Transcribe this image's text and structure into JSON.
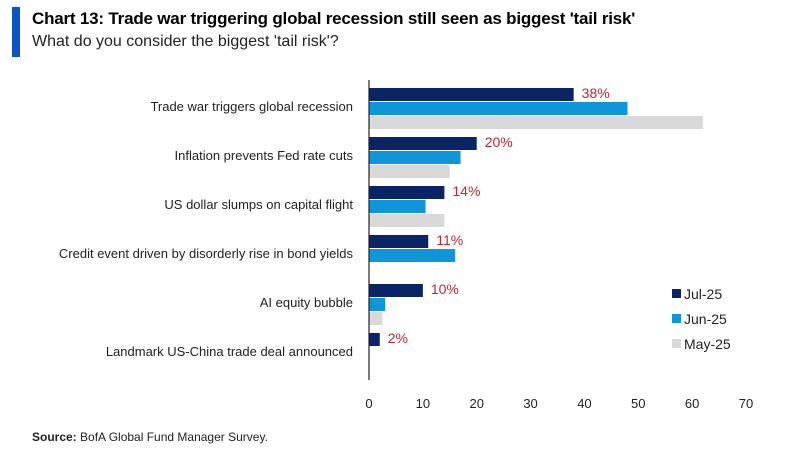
{
  "header": {
    "title": "Chart 13: Trade war triggering global recession still seen as biggest 'tail risk'",
    "subtitle": "What do you consider the biggest 'tail risk'?"
  },
  "footer": {
    "source_label": "Source:",
    "source_text": " BofA Global Fund Manager Survey."
  },
  "chart_data": {
    "type": "bar",
    "orientation": "horizontal",
    "title": "Chart 13: Trade war triggering global recession still seen as biggest 'tail risk'",
    "subtitle": "What do you consider the biggest 'tail risk'?",
    "xlabel": "",
    "ylabel": "",
    "xlim": [
      0,
      70
    ],
    "xticks": [
      0,
      10,
      20,
      30,
      40,
      50,
      60,
      70
    ],
    "grid": false,
    "legend_position": "bottom-right",
    "categories": [
      "Trade war triggers global recession",
      "Inflation prevents Fed rate cuts",
      "US dollar slumps on capital flight",
      "Credit event driven by disorderly rise in bond yields",
      "AI equity bubble",
      "Landmark US-China trade deal announced"
    ],
    "series": [
      {
        "name": "Jul-25",
        "color": "#0b2466",
        "values": [
          38,
          20,
          14,
          11,
          10,
          2
        ]
      },
      {
        "name": "Jun-25",
        "color": "#0f96d8",
        "values": [
          48,
          17,
          10.5,
          16,
          3,
          0
        ]
      },
      {
        "name": "May-25",
        "color": "#d9d9d9",
        "values": [
          62,
          15,
          14,
          0,
          2.5,
          0
        ]
      }
    ],
    "data_labels": [
      "38%",
      "20%",
      "14%",
      "11%",
      "10%",
      "2%"
    ],
    "data_label_color": "#c0282d"
  }
}
